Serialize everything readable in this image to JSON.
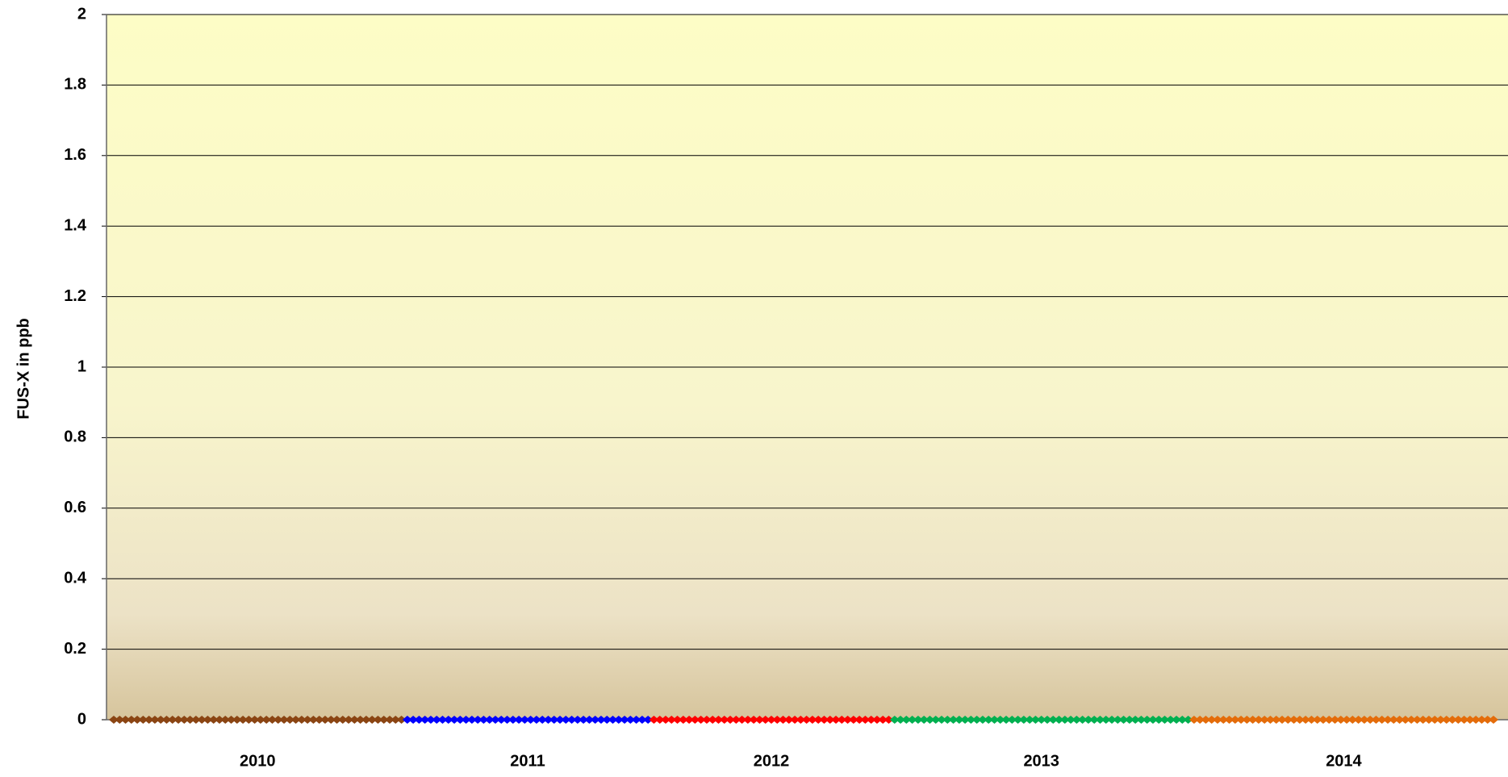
{
  "chart_data": {
    "type": "line",
    "ylabel": "FUS-X in ppb",
    "ylim": [
      0,
      2
    ],
    "yticks": [
      0,
      0.2,
      0.4,
      0.6,
      0.8,
      1,
      1.2,
      1.4,
      1.6,
      1.8,
      2
    ],
    "grid": true,
    "series": [
      {
        "name": "2010",
        "color": "#8b4513",
        "values": [
          0,
          0,
          0,
          0,
          0,
          0,
          0,
          0,
          0,
          0,
          0,
          0,
          0,
          0,
          0,
          0,
          0,
          0,
          0,
          0,
          0,
          0,
          0,
          0,
          0,
          0,
          0,
          0,
          0,
          0,
          0,
          0,
          0,
          0,
          0,
          0,
          0,
          0,
          0,
          0,
          0,
          0,
          0,
          0,
          0,
          0,
          0,
          0,
          0,
          0
        ]
      },
      {
        "name": "2011",
        "color": "#0000ff",
        "values": [
          0,
          0,
          0,
          0,
          0,
          0,
          0,
          0,
          0,
          0,
          0,
          0,
          0,
          0,
          0,
          0,
          0,
          0,
          0,
          0,
          0,
          0,
          0,
          0,
          0,
          0,
          0,
          0,
          0,
          0,
          0,
          0,
          0,
          0,
          0,
          0,
          0,
          0,
          0,
          0,
          0,
          0
        ]
      },
      {
        "name": "2012",
        "color": "#ff0000",
        "values": [
          0,
          0,
          0,
          0,
          0,
          0,
          0,
          0,
          0,
          0,
          0,
          0,
          0,
          0,
          0,
          0,
          0,
          0,
          0,
          0,
          0,
          0,
          0,
          0,
          0,
          0,
          0,
          0,
          0,
          0,
          0,
          0,
          0,
          0,
          0,
          0,
          0,
          0,
          0,
          0,
          0
        ]
      },
      {
        "name": "2013",
        "color": "#00b050",
        "values": [
          0,
          0,
          0,
          0,
          0,
          0,
          0,
          0,
          0,
          0,
          0,
          0,
          0,
          0,
          0,
          0,
          0,
          0,
          0,
          0,
          0,
          0,
          0,
          0,
          0,
          0,
          0,
          0,
          0,
          0,
          0,
          0,
          0,
          0,
          0,
          0,
          0,
          0,
          0,
          0,
          0,
          0,
          0,
          0,
          0,
          0,
          0,
          0,
          0,
          0,
          0
        ]
      },
      {
        "name": "2014",
        "color": "#e46c0a",
        "values": [
          0,
          0,
          0,
          0,
          0,
          0,
          0,
          0,
          0,
          0,
          0,
          0,
          0,
          0,
          0,
          0,
          0,
          0,
          0,
          0,
          0,
          0,
          0,
          0,
          0,
          0,
          0,
          0,
          0,
          0,
          0,
          0,
          0,
          0,
          0,
          0,
          0,
          0,
          0,
          0,
          0,
          0,
          0,
          0,
          0,
          0,
          0,
          0,
          0,
          0,
          0,
          0
        ]
      }
    ]
  }
}
